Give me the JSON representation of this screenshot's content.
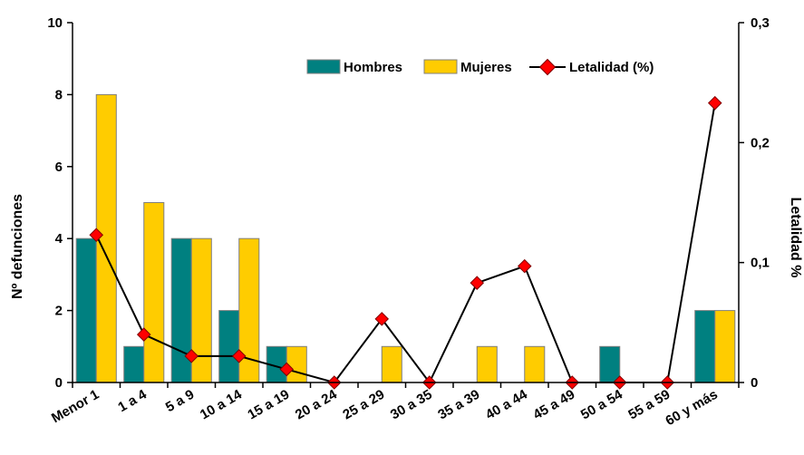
{
  "colors": {
    "hombres": "#008080",
    "mujeres": "#ffcc00",
    "bar_stroke": "#7f7f7f",
    "line": "#000000",
    "marker": "#ff0000"
  },
  "chart_data": {
    "type": "bar",
    "categories": [
      "Menor 1",
      "1 a 4",
      "5 a 9",
      "10 a 14",
      "15 a 19",
      "20 a 24",
      "25 a 29",
      "30 a 35",
      "35 a 39",
      "40 a 44",
      "45 a 49",
      "50 a 54",
      "55 a 59",
      "60 y más"
    ],
    "series": [
      {
        "name": "Hombres",
        "type": "bar",
        "axis": "left",
        "values": [
          4,
          1,
          4,
          2,
          1,
          0,
          0,
          0,
          0,
          0,
          0,
          1,
          0,
          2
        ]
      },
      {
        "name": "Mujeres",
        "type": "bar",
        "axis": "left",
        "values": [
          8,
          5,
          4,
          4,
          1,
          0,
          1,
          0,
          1,
          1,
          0,
          0,
          0,
          2
        ]
      },
      {
        "name": "Letalidad (%)",
        "type": "line",
        "axis": "right",
        "values": [
          0.123,
          0.04,
          0.022,
          0.022,
          0.011,
          0,
          0.053,
          0,
          0.083,
          0.097,
          0,
          0,
          0,
          0.233
        ]
      }
    ],
    "ylabel": "Nº defunciones",
    "y2label": "Letalidad %",
    "ylim": [
      0,
      10
    ],
    "y2lim": [
      0,
      0.3
    ],
    "yticks": [
      "0",
      "2",
      "4",
      "6",
      "8",
      "10"
    ],
    "y2ticks": [
      "0",
      "0,1",
      "0,2",
      "0,3"
    ],
    "legend_position": "top-right",
    "grid": false
  }
}
